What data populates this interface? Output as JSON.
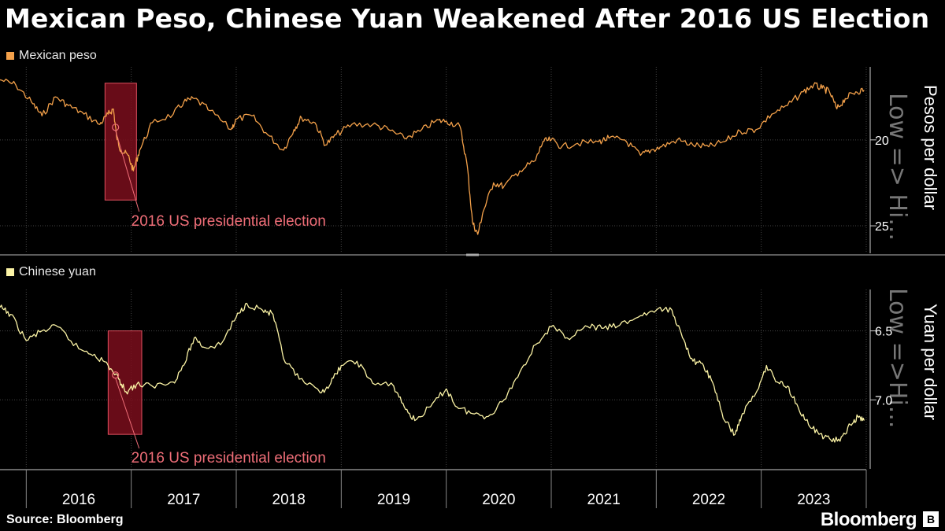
{
  "title": "Mexican Peso, Chinese Yuan Weakened After 2016 US Election",
  "source": "Source: Bloomberg",
  "brand": "Bloomberg",
  "colors": {
    "peso": "#f4a14a",
    "yuan": "#fbf3a5",
    "highlight_fill": "#7a0e1c",
    "highlight_stroke": "#e0505f",
    "annotation": "#ef6e78"
  },
  "x_axis": {
    "tick_labels": [
      "2016",
      "2017",
      "2018",
      "2019",
      "2020",
      "2021",
      "2022",
      "2023"
    ]
  },
  "chart_data": [
    {
      "type": "line",
      "legend": "Mexican peso",
      "ylabel": "Pesos per dollar",
      "low_high_label": "Low => Hi...",
      "y_inverted": true,
      "ylim": [
        15.75,
        26.6
      ],
      "yticks": [
        20,
        25
      ],
      "annotation": {
        "text": "2016 US presidential election",
        "date": 2016.85
      },
      "highlight": {
        "x_start": 2016.75,
        "x_end": 2017.05,
        "y_top": 16.7,
        "y_bottom": 23.5
      },
      "series": [
        {
          "name": "Mexican peso",
          "points": [
            [
              2015.75,
              16.5
            ],
            [
              2015.9,
              16.8
            ],
            [
              2016.05,
              17.8
            ],
            [
              2016.15,
              18.6
            ],
            [
              2016.28,
              17.5
            ],
            [
              2016.4,
              18.0
            ],
            [
              2016.55,
              18.5
            ],
            [
              2016.7,
              19.1
            ],
            [
              2016.78,
              18.5
            ],
            [
              2016.83,
              18.2
            ],
            [
              2016.86,
              19.8
            ],
            [
              2016.9,
              20.6
            ],
            [
              2016.97,
              20.9
            ],
            [
              2017.02,
              21.8
            ],
            [
              2017.08,
              20.6
            ],
            [
              2017.2,
              19.0
            ],
            [
              2017.4,
              18.5
            ],
            [
              2017.5,
              17.8
            ],
            [
              2017.6,
              17.6
            ],
            [
              2017.75,
              18.3
            ],
            [
              2017.95,
              19.4
            ],
            [
              2018.0,
              18.8
            ],
            [
              2018.15,
              18.6
            ],
            [
              2018.3,
              19.7
            ],
            [
              2018.45,
              20.6
            ],
            [
              2018.55,
              19.4
            ],
            [
              2018.62,
              18.7
            ],
            [
              2018.75,
              19.0
            ],
            [
              2018.85,
              20.3
            ],
            [
              2018.95,
              19.7
            ],
            [
              2019.1,
              19.1
            ],
            [
              2019.3,
              19.1
            ],
            [
              2019.45,
              19.4
            ],
            [
              2019.6,
              19.9
            ],
            [
              2019.75,
              19.5
            ],
            [
              2019.9,
              18.9
            ],
            [
              2020.0,
              18.9
            ],
            [
              2020.13,
              19.2
            ],
            [
              2020.2,
              21.5
            ],
            [
              2020.25,
              24.8
            ],
            [
              2020.3,
              25.5
            ],
            [
              2020.35,
              24.2
            ],
            [
              2020.45,
              22.5
            ],
            [
              2020.55,
              22.7
            ],
            [
              2020.7,
              21.8
            ],
            [
              2020.85,
              21.2
            ],
            [
              2020.92,
              20.1
            ],
            [
              2021.0,
              20.0
            ],
            [
              2021.1,
              20.4
            ],
            [
              2021.25,
              20.2
            ],
            [
              2021.45,
              20.1
            ],
            [
              2021.55,
              19.9
            ],
            [
              2021.7,
              20.0
            ],
            [
              2021.85,
              20.9
            ],
            [
              2021.95,
              20.6
            ],
            [
              2022.05,
              20.4
            ],
            [
              2022.2,
              20.0
            ],
            [
              2022.35,
              20.3
            ],
            [
              2022.5,
              20.4
            ],
            [
              2022.65,
              20.1
            ],
            [
              2022.8,
              19.5
            ],
            [
              2022.95,
              19.4
            ],
            [
              2023.1,
              18.5
            ],
            [
              2023.25,
              18.0
            ],
            [
              2023.4,
              17.2
            ],
            [
              2023.5,
              16.8
            ],
            [
              2023.58,
              17.0
            ],
            [
              2023.65,
              17.2
            ],
            [
              2023.72,
              18.2
            ],
            [
              2023.8,
              17.6
            ],
            [
              2023.9,
              17.2
            ],
            [
              2023.98,
              17.1
            ]
          ]
        }
      ]
    },
    {
      "type": "line",
      "legend": "Chinese yuan",
      "ylabel": "Yuan per dollar",
      "low_high_label": "Low =>Hi...",
      "y_inverted": true,
      "ylim": [
        6.2,
        7.5
      ],
      "yticks": [
        6.5,
        7.0
      ],
      "annotation": {
        "text": "2016 US presidential election",
        "date": 2016.85
      },
      "highlight": {
        "x_start": 2016.78,
        "x_end": 2017.1,
        "y_top": 6.5,
        "y_bottom": 7.25
      },
      "series": [
        {
          "name": "Chinese yuan",
          "points": [
            [
              2015.75,
              6.33
            ],
            [
              2015.85,
              6.38
            ],
            [
              2016.0,
              6.57
            ],
            [
              2016.15,
              6.5
            ],
            [
              2016.3,
              6.47
            ],
            [
              2016.5,
              6.63
            ],
            [
              2016.65,
              6.67
            ],
            [
              2016.78,
              6.75
            ],
            [
              2016.88,
              6.85
            ],
            [
              2016.95,
              6.94
            ],
            [
              2017.05,
              6.89
            ],
            [
              2017.2,
              6.9
            ],
            [
              2017.4,
              6.87
            ],
            [
              2017.5,
              6.75
            ],
            [
              2017.6,
              6.55
            ],
            [
              2017.7,
              6.62
            ],
            [
              2017.85,
              6.6
            ],
            [
              2018.0,
              6.4
            ],
            [
              2018.1,
              6.3
            ],
            [
              2018.25,
              6.35
            ],
            [
              2018.35,
              6.38
            ],
            [
              2018.45,
              6.7
            ],
            [
              2018.6,
              6.85
            ],
            [
              2018.8,
              6.95
            ],
            [
              2018.9,
              6.88
            ],
            [
              2019.0,
              6.75
            ],
            [
              2019.15,
              6.72
            ],
            [
              2019.3,
              6.88
            ],
            [
              2019.5,
              6.9
            ],
            [
              2019.6,
              7.05
            ],
            [
              2019.7,
              7.15
            ],
            [
              2019.85,
              7.05
            ],
            [
              2020.0,
              6.92
            ],
            [
              2020.1,
              7.05
            ],
            [
              2020.25,
              7.1
            ],
            [
              2020.4,
              7.12
            ],
            [
              2020.55,
              7.0
            ],
            [
              2020.7,
              6.8
            ],
            [
              2020.85,
              6.6
            ],
            [
              2021.0,
              6.47
            ],
            [
              2021.15,
              6.55
            ],
            [
              2021.35,
              6.47
            ],
            [
              2021.5,
              6.48
            ],
            [
              2021.65,
              6.46
            ],
            [
              2021.85,
              6.39
            ],
            [
              2022.0,
              6.35
            ],
            [
              2022.15,
              6.35
            ],
            [
              2022.25,
              6.55
            ],
            [
              2022.35,
              6.72
            ],
            [
              2022.45,
              6.75
            ],
            [
              2022.55,
              6.9
            ],
            [
              2022.65,
              7.15
            ],
            [
              2022.75,
              7.25
            ],
            [
              2022.82,
              7.1
            ],
            [
              2022.95,
              6.95
            ],
            [
              2023.05,
              6.75
            ],
            [
              2023.15,
              6.87
            ],
            [
              2023.25,
              6.9
            ],
            [
              2023.35,
              7.05
            ],
            [
              2023.45,
              7.18
            ],
            [
              2023.55,
              7.25
            ],
            [
              2023.65,
              7.28
            ],
            [
              2023.75,
              7.3
            ],
            [
              2023.85,
              7.18
            ],
            [
              2023.92,
              7.12
            ],
            [
              2023.98,
              7.15
            ]
          ]
        }
      ]
    }
  ]
}
